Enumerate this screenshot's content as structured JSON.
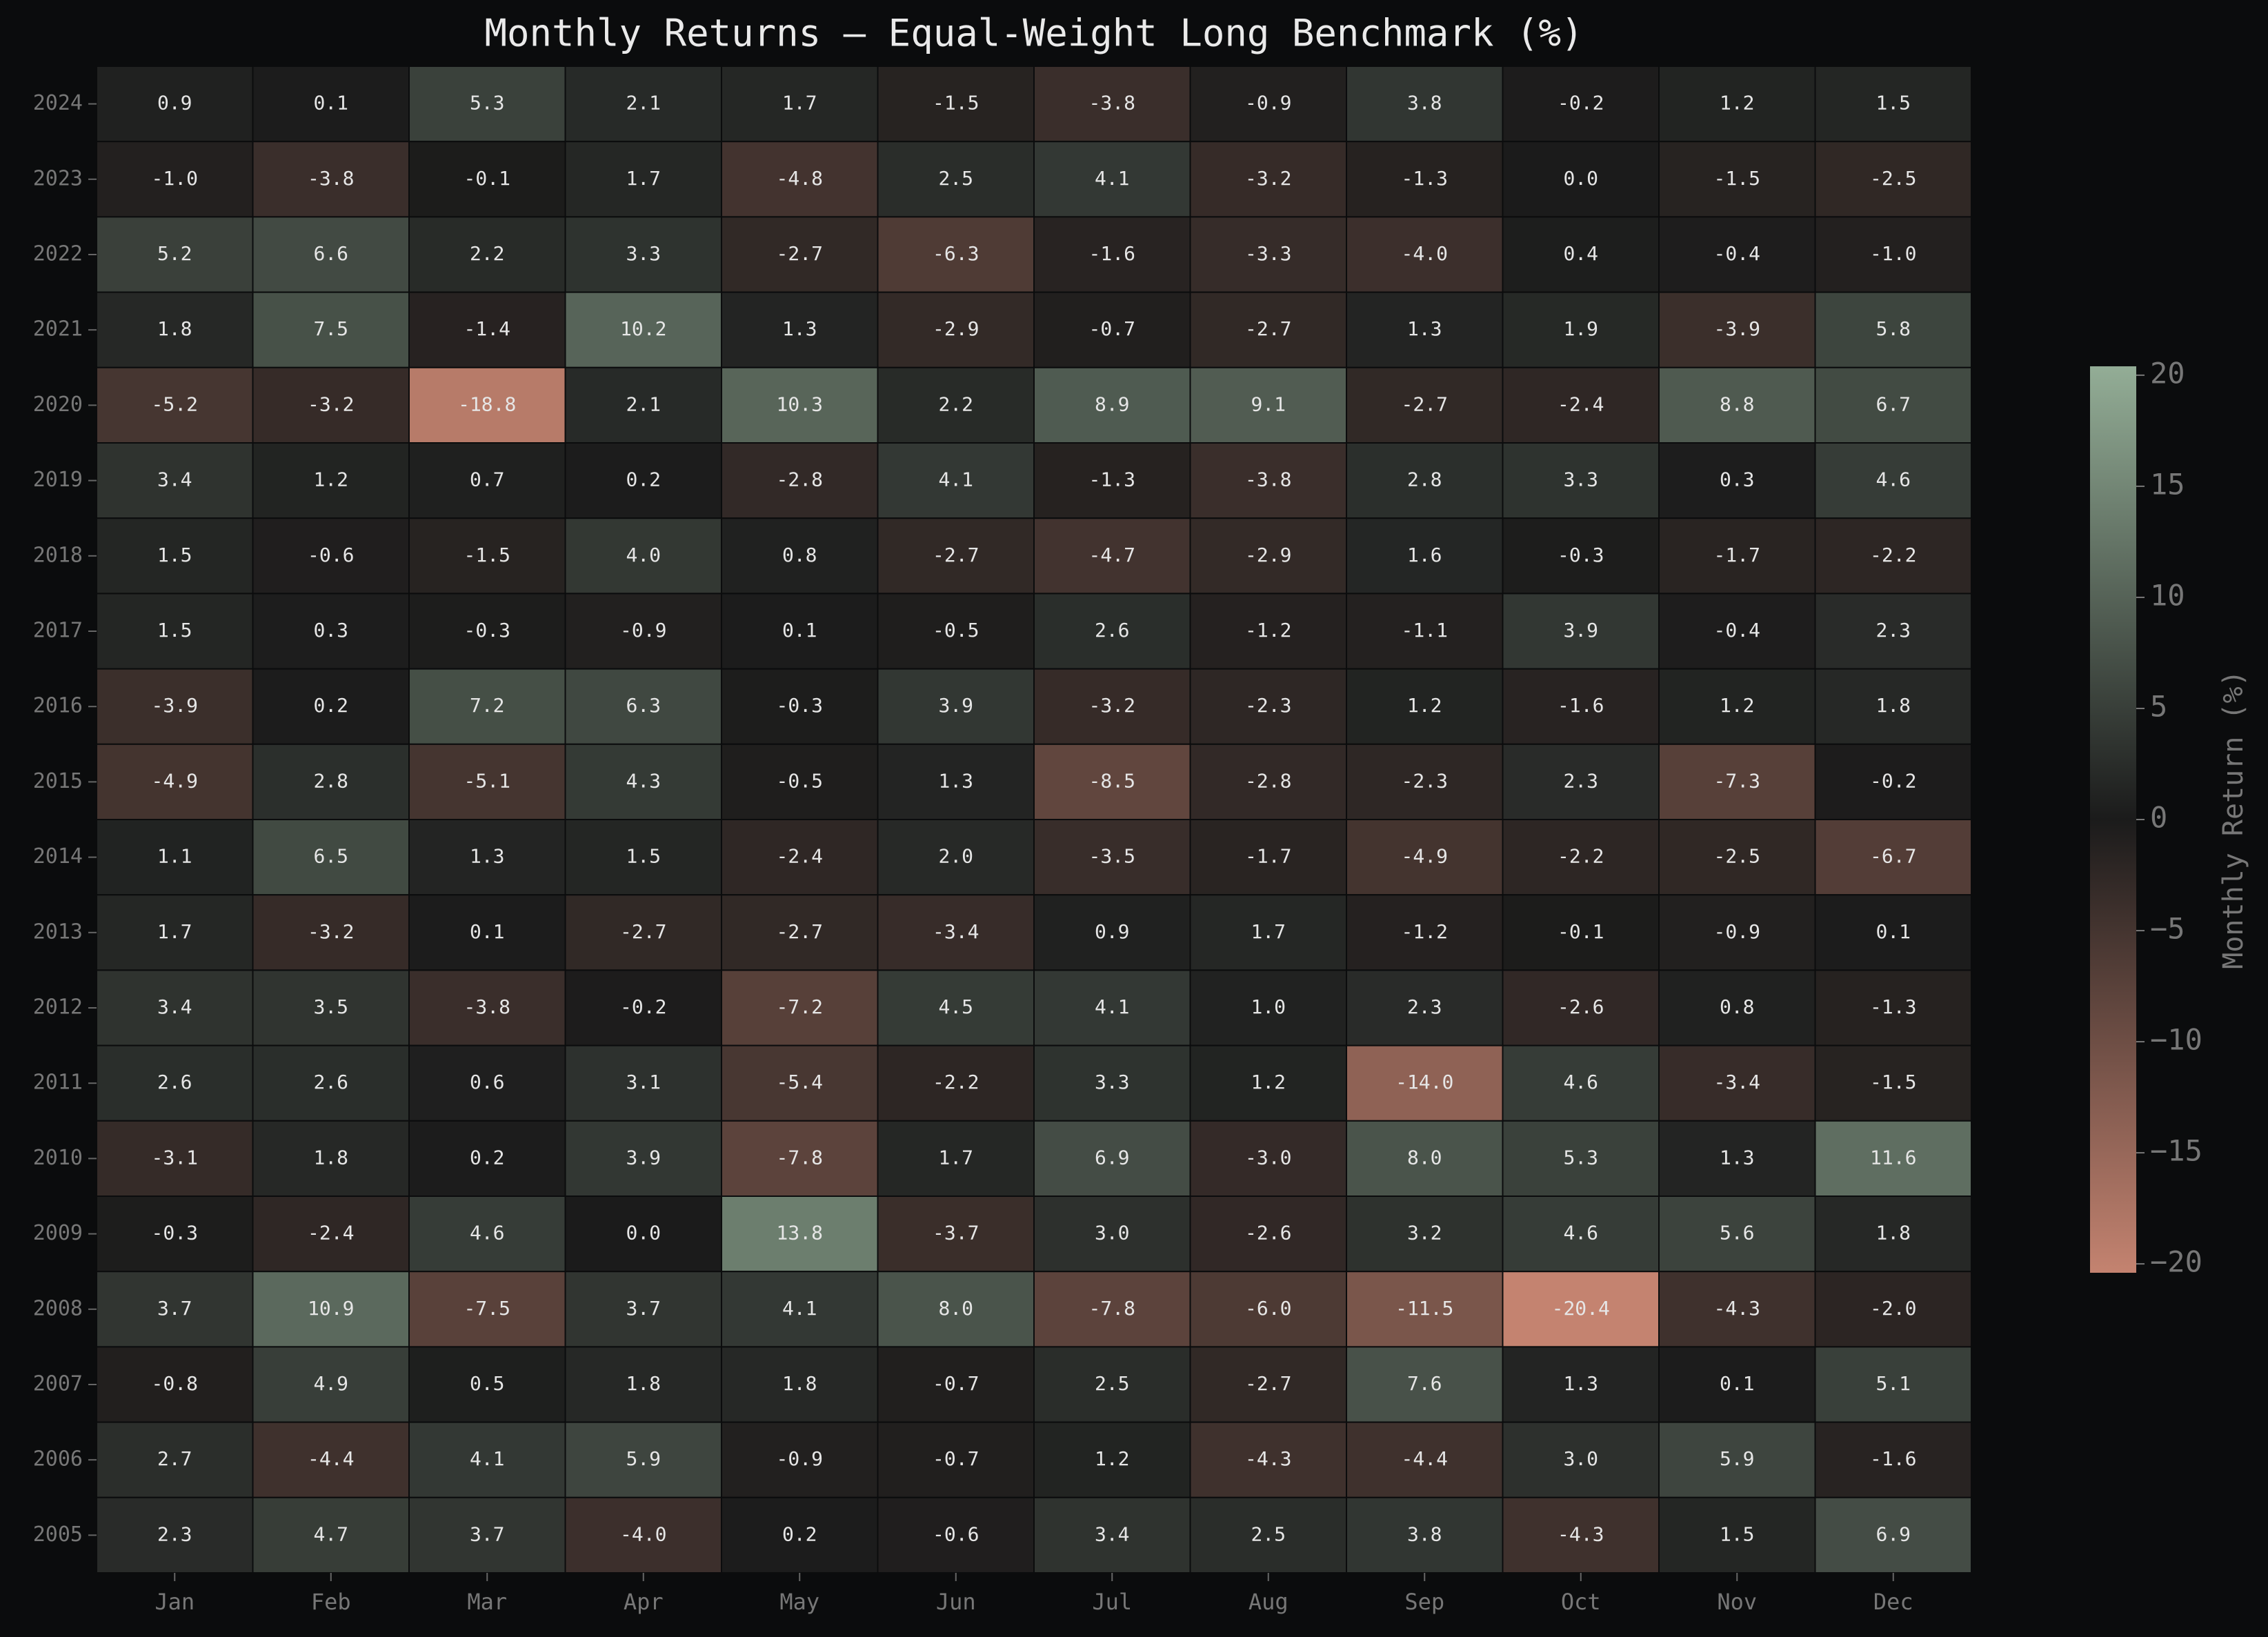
{
  "chart_data": {
    "type": "heatmap",
    "title": "Monthly Returns — Equal-Weight Long Benchmark (%)",
    "x_categories": [
      "Jan",
      "Feb",
      "Mar",
      "Apr",
      "May",
      "Jun",
      "Jul",
      "Aug",
      "Sep",
      "Oct",
      "Nov",
      "Dec"
    ],
    "y_categories": [
      "2024",
      "2023",
      "2022",
      "2021",
      "2020",
      "2019",
      "2018",
      "2017",
      "2016",
      "2015",
      "2014",
      "2013",
      "2012",
      "2011",
      "2010",
      "2009",
      "2008",
      "2007",
      "2006",
      "2005"
    ],
    "values": [
      [
        0.9,
        0.1,
        5.3,
        2.1,
        1.7,
        -1.5,
        -3.8,
        -0.9,
        3.8,
        -0.2,
        1.2,
        1.5
      ],
      [
        -1.0,
        -3.8,
        -0.1,
        1.7,
        -4.8,
        2.5,
        4.1,
        -3.2,
        -1.3,
        0.0,
        -1.5,
        -2.5
      ],
      [
        5.2,
        6.6,
        2.2,
        3.3,
        -2.7,
        -6.3,
        -1.6,
        -3.3,
        -4.0,
        0.4,
        -0.4,
        -1.0
      ],
      [
        1.8,
        7.5,
        -1.4,
        10.2,
        1.3,
        -2.9,
        -0.7,
        -2.7,
        1.3,
        1.9,
        -3.9,
        5.8
      ],
      [
        -5.2,
        -3.2,
        -18.8,
        2.1,
        10.3,
        2.2,
        8.9,
        9.1,
        -2.7,
        -2.4,
        8.8,
        6.7
      ],
      [
        3.4,
        1.2,
        0.7,
        0.2,
        -2.8,
        4.1,
        -1.3,
        -3.8,
        2.8,
        3.3,
        0.3,
        4.6
      ],
      [
        1.5,
        -0.6,
        -1.5,
        4.0,
        0.8,
        -2.7,
        -4.7,
        -2.9,
        1.6,
        -0.3,
        -1.7,
        -2.2
      ],
      [
        1.5,
        0.3,
        -0.3,
        -0.9,
        0.1,
        -0.5,
        2.6,
        -1.2,
        -1.1,
        3.9,
        -0.4,
        2.3
      ],
      [
        -3.9,
        0.2,
        7.2,
        6.3,
        -0.3,
        3.9,
        -3.2,
        -2.3,
        1.2,
        -1.6,
        1.2,
        1.8
      ],
      [
        -4.9,
        2.8,
        -5.1,
        4.3,
        -0.5,
        1.3,
        -8.5,
        -2.8,
        -2.3,
        2.3,
        -7.3,
        -0.2
      ],
      [
        1.1,
        6.5,
        1.3,
        1.5,
        -2.4,
        2.0,
        -3.5,
        -1.7,
        -4.9,
        -2.2,
        -2.5,
        -6.7
      ],
      [
        1.7,
        -3.2,
        0.1,
        -2.7,
        -2.7,
        -3.4,
        0.9,
        1.7,
        -1.2,
        -0.1,
        -0.9,
        0.1
      ],
      [
        3.4,
        3.5,
        -3.8,
        -0.2,
        -7.2,
        4.5,
        4.1,
        1.0,
        2.3,
        -2.6,
        0.8,
        -1.3
      ],
      [
        2.6,
        2.6,
        0.6,
        3.1,
        -5.4,
        -2.2,
        3.3,
        1.2,
        -14.0,
        4.6,
        -3.4,
        -1.5
      ],
      [
        -3.1,
        1.8,
        0.2,
        3.9,
        -7.8,
        1.7,
        6.9,
        -3.0,
        8.0,
        5.3,
        1.3,
        11.6
      ],
      [
        -0.3,
        -2.4,
        4.6,
        0.0,
        13.8,
        -3.7,
        3.0,
        -2.6,
        3.2,
        4.6,
        5.6,
        1.8
      ],
      [
        3.7,
        10.9,
        -7.5,
        3.7,
        4.1,
        8.0,
        -7.8,
        -6.0,
        -11.5,
        -20.4,
        -4.3,
        -2.0
      ],
      [
        -0.8,
        4.9,
        0.5,
        1.8,
        1.8,
        -0.7,
        2.5,
        -2.7,
        7.6,
        1.3,
        0.1,
        5.1
      ],
      [
        2.7,
        -4.4,
        4.1,
        5.9,
        -0.9,
        -0.7,
        1.2,
        -4.3,
        -4.4,
        3.0,
        5.9,
        -1.6
      ],
      [
        2.3,
        4.7,
        3.7,
        -4.0,
        0.2,
        -0.6,
        3.4,
        2.5,
        3.8,
        -4.3,
        1.5,
        6.9
      ]
    ],
    "value_labels": [
      [
        "0.9",
        "0.1",
        "5.3",
        "2.1",
        "1.7",
        "-1.5",
        "-3.8",
        "-0.9",
        "3.8",
        "-0.2",
        "1.2",
        "1.5"
      ],
      [
        "-1.0",
        "-3.8",
        "-0.1",
        "1.7",
        "-4.8",
        "2.5",
        "4.1",
        "-3.2",
        "-1.3",
        "0.0",
        "-1.5",
        "-2.5"
      ],
      [
        "5.2",
        "6.6",
        "2.2",
        "3.3",
        "-2.7",
        "-6.3",
        "-1.6",
        "-3.3",
        "-4.0",
        "0.4",
        "-0.4",
        "-1.0"
      ],
      [
        "1.8",
        "7.5",
        "-1.4",
        "10.2",
        "1.3",
        "-2.9",
        "-0.7",
        "-2.7",
        "1.3",
        "1.9",
        "-3.9",
        "5.8"
      ],
      [
        "-5.2",
        "-3.2",
        "-18.8",
        "2.1",
        "10.3",
        "2.2",
        "8.9",
        "9.1",
        "-2.7",
        "-2.4",
        "8.8",
        "6.7"
      ],
      [
        "3.4",
        "1.2",
        "0.7",
        "0.2",
        "-2.8",
        "4.1",
        "-1.3",
        "-3.8",
        "2.8",
        "3.3",
        "0.3",
        "4.6"
      ],
      [
        "1.5",
        "-0.6",
        "-1.5",
        "4.0",
        "0.8",
        "-2.7",
        "-4.7",
        "-2.9",
        "1.6",
        "-0.3",
        "-1.7",
        "-2.2"
      ],
      [
        "1.5",
        "0.3",
        "-0.3",
        "-0.9",
        "0.1",
        "-0.5",
        "2.6",
        "-1.2",
        "-1.1",
        "3.9",
        "-0.4",
        "2.3"
      ],
      [
        "-3.9",
        "0.2",
        "7.2",
        "6.3",
        "-0.3",
        "3.9",
        "-3.2",
        "-2.3",
        "1.2",
        "-1.6",
        "1.2",
        "1.8"
      ],
      [
        "-4.9",
        "2.8",
        "-5.1",
        "4.3",
        "-0.5",
        "1.3",
        "-8.5",
        "-2.8",
        "-2.3",
        "2.3",
        "-7.3",
        "-0.2"
      ],
      [
        "1.1",
        "6.5",
        "1.3",
        "1.5",
        "-2.4",
        "2.0",
        "-3.5",
        "-1.7",
        "-4.9",
        "-2.2",
        "-2.5",
        "-6.7"
      ],
      [
        "1.7",
        "-3.2",
        "0.1",
        "-2.7",
        "-2.7",
        "-3.4",
        "0.9",
        "1.7",
        "-1.2",
        "-0.1",
        "-0.9",
        "0.1"
      ],
      [
        "3.4",
        "3.5",
        "-3.8",
        "-0.2",
        "-7.2",
        "4.5",
        "4.1",
        "1.0",
        "2.3",
        "-2.6",
        "0.8",
        "-1.3"
      ],
      [
        "2.6",
        "2.6",
        "0.6",
        "3.1",
        "-5.4",
        "-2.2",
        "3.3",
        "1.2",
        "-14.0",
        "4.6",
        "-3.4",
        "-1.5"
      ],
      [
        "-3.1",
        "1.8",
        "0.2",
        "3.9",
        "-7.8",
        "1.7",
        "6.9",
        "-3.0",
        "8.0",
        "5.3",
        "1.3",
        "11.6"
      ],
      [
        "-0.3",
        "-2.4",
        "4.6",
        "0.0",
        "13.8",
        "-3.7",
        "3.0",
        "-2.6",
        "3.2",
        "4.6",
        "5.6",
        "1.8"
      ],
      [
        "3.7",
        "10.9",
        "-7.5",
        "3.7",
        "4.1",
        "8.0",
        "-7.8",
        "-6.0",
        "-11.5",
        "-20.4",
        "-4.3",
        "-2.0"
      ],
      [
        "-0.8",
        "4.9",
        "0.5",
        "1.8",
        "1.8",
        "-0.7",
        "2.5",
        "-2.7",
        "7.6",
        "1.3",
        "0.1",
        "5.1"
      ],
      [
        "2.7",
        "-4.4",
        "4.1",
        "5.9",
        "-0.9",
        "-0.7",
        "1.2",
        "-4.3",
        "-4.4",
        "3.0",
        "5.9",
        "-1.6"
      ],
      [
        "2.3",
        "4.7",
        "3.7",
        "-4.0",
        "0.2",
        "-0.6",
        "3.4",
        "2.5",
        "3.8",
        "-4.3",
        "1.5",
        "6.9"
      ]
    ],
    "colormap": [
      "#c48370",
      "#1b1b1b",
      "#93ad96"
    ],
    "clim": [
      -20.4,
      20.4
    ],
    "colorbar_label": "Monthly Return (%)",
    "colorbar_ticks": [
      {
        "value": -20,
        "label": "−20"
      },
      {
        "value": -15,
        "label": "−15"
      },
      {
        "value": -10,
        "label": "−10"
      },
      {
        "value": -5,
        "label": "−5"
      },
      0,
      5,
      10,
      15,
      20
    ]
  }
}
